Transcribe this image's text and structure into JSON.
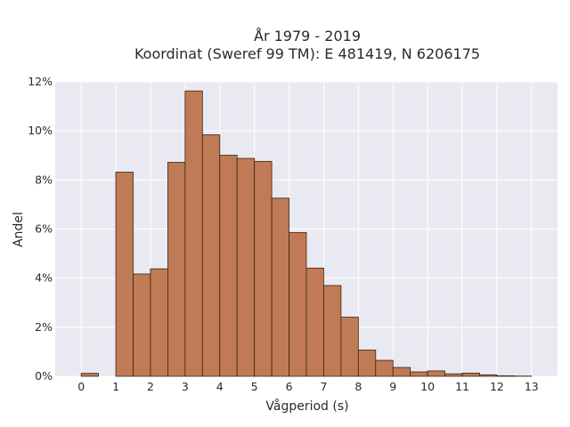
{
  "chart_data": {
    "type": "bar",
    "title": "År 1979 - 2019",
    "subtitle": "Koordinat (Sweref 99 TM): E 481419, N 6206175",
    "xlabel": "Vågperiod (s)",
    "ylabel": "Andel",
    "xlim": [
      -0.75,
      13.75
    ],
    "ylim": [
      0,
      12
    ],
    "x_ticks": [
      0,
      1,
      2,
      3,
      4,
      5,
      6,
      7,
      8,
      9,
      10,
      11,
      12,
      13
    ],
    "y_ticks": [
      0,
      2,
      4,
      6,
      8,
      10,
      12
    ],
    "y_tick_labels": [
      "0%",
      "2%",
      "4%",
      "6%",
      "8%",
      "10%",
      "12%"
    ],
    "bin_width": 0.5,
    "bins": [
      {
        "start": 0.0,
        "value": 0.12
      },
      {
        "start": 1.0,
        "value": 8.32
      },
      {
        "start": 1.5,
        "value": 4.17
      },
      {
        "start": 2.0,
        "value": 4.38
      },
      {
        "start": 2.5,
        "value": 8.72
      },
      {
        "start": 3.0,
        "value": 11.63
      },
      {
        "start": 3.5,
        "value": 9.84
      },
      {
        "start": 4.0,
        "value": 9.01
      },
      {
        "start": 4.5,
        "value": 8.88
      },
      {
        "start": 5.0,
        "value": 8.76
      },
      {
        "start": 5.5,
        "value": 7.26
      },
      {
        "start": 6.0,
        "value": 5.86
      },
      {
        "start": 6.5,
        "value": 4.41
      },
      {
        "start": 7.0,
        "value": 3.7
      },
      {
        "start": 7.5,
        "value": 2.41
      },
      {
        "start": 8.0,
        "value": 1.07
      },
      {
        "start": 8.5,
        "value": 0.65
      },
      {
        "start": 9.0,
        "value": 0.36
      },
      {
        "start": 9.5,
        "value": 0.18
      },
      {
        "start": 10.0,
        "value": 0.22
      },
      {
        "start": 10.5,
        "value": 0.1
      },
      {
        "start": 11.0,
        "value": 0.13
      },
      {
        "start": 11.5,
        "value": 0.06
      },
      {
        "start": 12.0,
        "value": 0.02
      },
      {
        "start": 12.5,
        "value": 0.01
      }
    ],
    "colors": {
      "bar_fill": "#bf7b55",
      "bar_edge": "#3a2414",
      "plot_background": "#e9e9f1",
      "grid": "#ffffff"
    },
    "grid": true,
    "legend": "none"
  }
}
